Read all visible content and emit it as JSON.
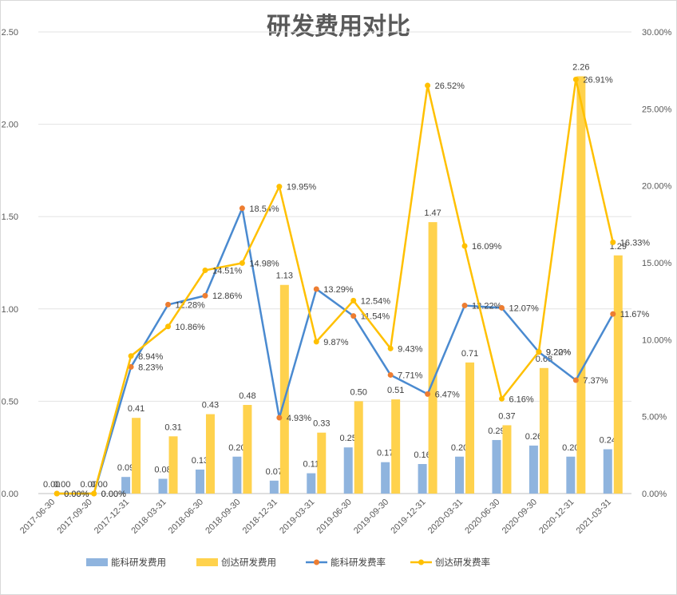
{
  "chart_data": {
    "type": "bar+line",
    "title": "研发费用对比",
    "categories": [
      "2017-06-30",
      "2017-09-30",
      "2017-12-31",
      "2018-03-31",
      "2018-06-30",
      "2018-09-30",
      "2018-12-31",
      "2019-03-31",
      "2019-06-30",
      "2019-09-30",
      "2019-12-31",
      "2020-03-31",
      "2020-06-30",
      "2020-09-30",
      "2020-12-31",
      "2021-03-31"
    ],
    "left_axis": {
      "min": 0,
      "max": 2.5,
      "ticks": [
        "0.00",
        "0.50",
        "1.00",
        "1.50",
        "2.00",
        "2.50"
      ]
    },
    "right_axis": {
      "min": 0,
      "max": 30,
      "ticks": [
        "0.00%",
        "5.00%",
        "10.00%",
        "15.00%",
        "20.00%",
        "25.00%",
        "30.00%"
      ]
    },
    "grid": true,
    "legend_position": "bottom",
    "series": [
      {
        "name": "能科研发费用",
        "kind": "bar",
        "axis": "left",
        "color": "#8fb4de",
        "values": [
          0.0,
          0.0,
          0.09,
          0.08,
          0.13,
          0.2,
          0.07,
          0.11,
          0.25,
          0.17,
          0.16,
          0.2,
          0.29,
          0.26,
          0.2,
          0.24
        ],
        "labels": [
          "0.00",
          "0.00",
          "0.09",
          "0.08",
          "0.13",
          "0.20",
          "0.07",
          "0.11",
          "0.25",
          "0.17",
          "0.16",
          "0.20",
          "0.29",
          "0.26",
          "0.20",
          "0.24"
        ]
      },
      {
        "name": "创达研发费用",
        "kind": "bar",
        "axis": "left",
        "color": "#ffd24d",
        "values": [
          0.0,
          0.0,
          0.41,
          0.31,
          0.43,
          0.48,
          1.13,
          0.33,
          0.5,
          0.51,
          1.47,
          0.71,
          0.37,
          0.68,
          2.26,
          1.29
        ],
        "labels": [
          "0.00",
          "0.00",
          "0.41",
          "0.31",
          "0.43",
          "0.48",
          "1.13",
          "0.33",
          "0.50",
          "0.51",
          "1.47",
          "0.71",
          "0.37",
          "0.68",
          "2.26",
          "1.29"
        ]
      },
      {
        "name": "能科研发费率",
        "kind": "line",
        "axis": "right",
        "color": "#4a8ad0",
        "marker_color": "#ed7d31",
        "values": [
          0.0,
          0.0,
          8.23,
          12.28,
          12.86,
          18.54,
          4.93,
          13.29,
          11.54,
          7.71,
          6.47,
          12.22,
          12.07,
          9.2,
          7.37,
          11.67
        ],
        "labels": [
          "0.00%",
          "0.00%",
          "8.23%",
          "12.28%",
          "12.86%",
          "18.54%",
          "4.93%",
          "13.29%",
          "11.54%",
          "7.71%",
          "6.47%",
          "12.22%",
          "12.07%",
          "9.20%",
          "7.37%",
          "11.67%"
        ]
      },
      {
        "name": "创达研发费率",
        "kind": "line",
        "axis": "right",
        "color": "#ffc000",
        "marker_color": "#ffc000",
        "values": [
          0.0,
          0.0,
          8.94,
          10.86,
          14.51,
          14.98,
          19.95,
          9.87,
          12.54,
          9.43,
          26.52,
          16.09,
          6.16,
          9.22,
          26.91,
          16.33
        ],
        "labels": [
          "0.00%",
          "0.00%",
          "8.94%",
          "10.86%",
          "14.51%",
          "14.98%",
          "19.95%",
          "9.87%",
          "12.54%",
          "9.43%",
          "26.52%",
          "16.09%",
          "6.16%",
          "9.22%",
          "26.91%",
          "16.33%"
        ]
      }
    ]
  }
}
